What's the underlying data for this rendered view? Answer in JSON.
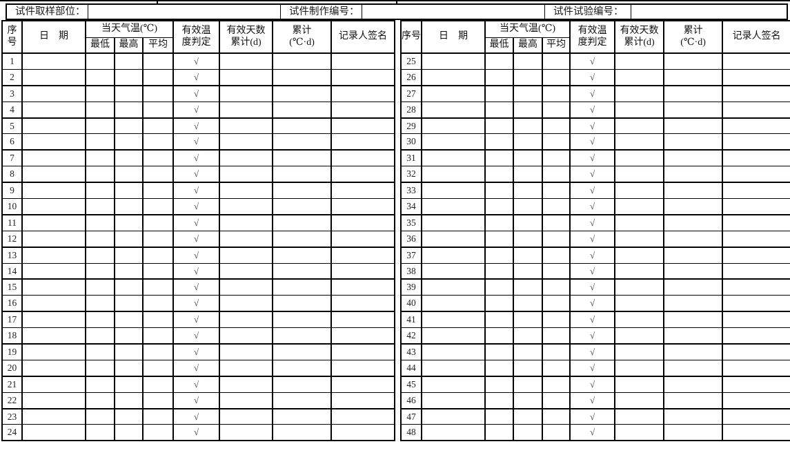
{
  "form": {
    "top_fields": {
      "sampling_label": "试件取样部位：",
      "production_label": "试件制作编号：",
      "testing_label": "试件试验编号：",
      "sampling_value": "",
      "production_value": "",
      "testing_value": ""
    },
    "columns": {
      "seq": "序号",
      "date": "日　期",
      "temp_group": "当天气温(℃)",
      "temp_min": "最低",
      "temp_max": "最高",
      "temp_avg": "平均",
      "judge_line1": "有效温",
      "judge_line2": "度判定",
      "days_line1": "有效天数",
      "days_line2": "累计(d)",
      "cumulative_line1": "累计",
      "cumulative_line2": "(℃·d)",
      "signature": "记录人签名"
    },
    "checkmark": "√",
    "tables": {
      "left": {
        "rows": [
          {
            "seq": "1",
            "judge": "√"
          },
          {
            "seq": "2",
            "judge": "√"
          },
          {
            "seq": "3",
            "judge": "√"
          },
          {
            "seq": "4",
            "judge": "√"
          },
          {
            "seq": "5",
            "judge": "√"
          },
          {
            "seq": "6",
            "judge": "√"
          },
          {
            "seq": "7",
            "judge": "√"
          },
          {
            "seq": "8",
            "judge": "√"
          },
          {
            "seq": "9",
            "judge": "√"
          },
          {
            "seq": "10",
            "judge": "√"
          },
          {
            "seq": "11",
            "judge": "√"
          },
          {
            "seq": "12",
            "judge": "√"
          },
          {
            "seq": "13",
            "judge": "√"
          },
          {
            "seq": "14",
            "judge": "√"
          },
          {
            "seq": "15",
            "judge": "√"
          },
          {
            "seq": "16",
            "judge": "√"
          },
          {
            "seq": "17",
            "judge": "√"
          },
          {
            "seq": "18",
            "judge": "√"
          },
          {
            "seq": "19",
            "judge": "√"
          },
          {
            "seq": "20",
            "judge": "√"
          },
          {
            "seq": "21",
            "judge": "√"
          },
          {
            "seq": "22",
            "judge": "√"
          },
          {
            "seq": "23",
            "judge": "√"
          },
          {
            "seq": "24",
            "judge": "√"
          }
        ]
      },
      "right": {
        "rows": [
          {
            "seq": "25",
            "judge": "√"
          },
          {
            "seq": "26",
            "judge": "√"
          },
          {
            "seq": "27",
            "judge": "√"
          },
          {
            "seq": "28",
            "judge": "√"
          },
          {
            "seq": "29",
            "judge": "√"
          },
          {
            "seq": "30",
            "judge": "√"
          },
          {
            "seq": "31",
            "judge": "√"
          },
          {
            "seq": "32",
            "judge": "√"
          },
          {
            "seq": "33",
            "judge": "√"
          },
          {
            "seq": "34",
            "judge": "√"
          },
          {
            "seq": "35",
            "judge": "√"
          },
          {
            "seq": "36",
            "judge": "√"
          },
          {
            "seq": "37",
            "judge": "√"
          },
          {
            "seq": "38",
            "judge": "√"
          },
          {
            "seq": "39",
            "judge": "√"
          },
          {
            "seq": "40",
            "judge": "√"
          },
          {
            "seq": "41",
            "judge": "√"
          },
          {
            "seq": "42",
            "judge": "√"
          },
          {
            "seq": "43",
            "judge": "√"
          },
          {
            "seq": "44",
            "judge": "√"
          },
          {
            "seq": "45",
            "judge": "√"
          },
          {
            "seq": "46",
            "judge": "√"
          },
          {
            "seq": "47",
            "judge": "√"
          },
          {
            "seq": "48",
            "judge": "√"
          }
        ]
      }
    }
  }
}
